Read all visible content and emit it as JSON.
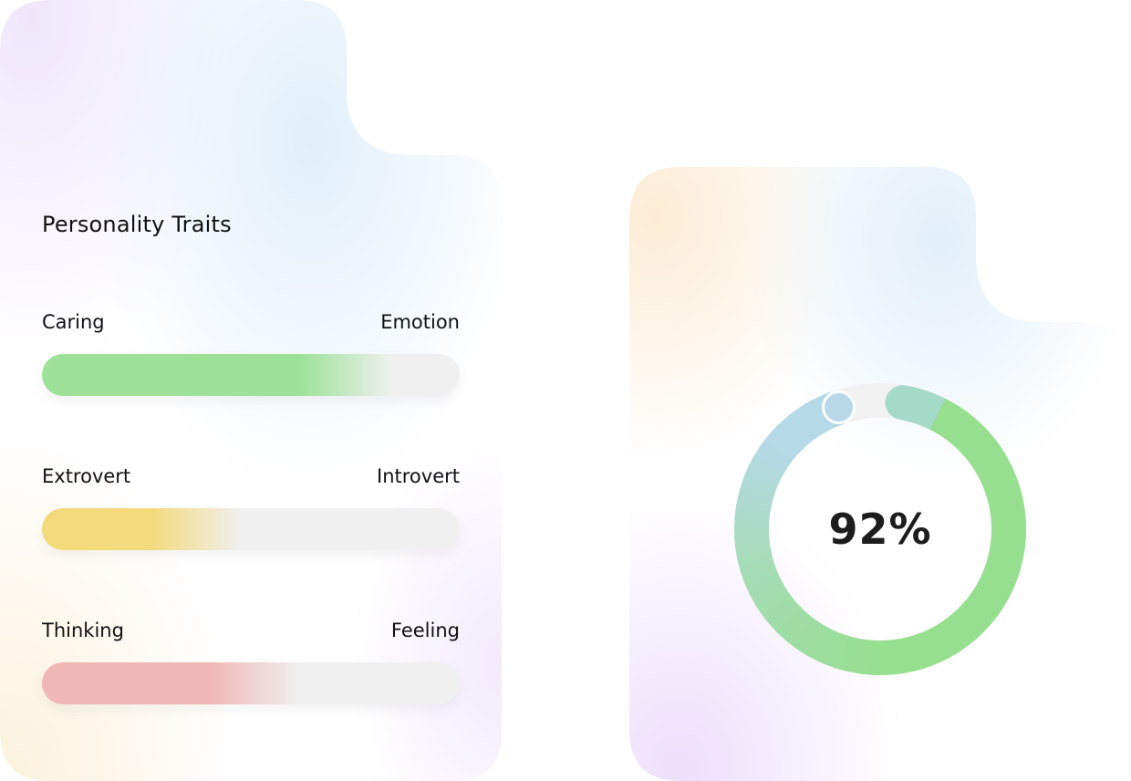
{
  "traits_card": {
    "title": "Personality Traits",
    "traits": [
      {
        "left_label": "Caring",
        "right_label": "Emotion",
        "level": 0.62,
        "color": "#9ee29a"
      },
      {
        "left_label": "Extrovert",
        "right_label": "Introvert",
        "level": 0.26,
        "color": "#f3da7c"
      },
      {
        "left_label": "Thinking",
        "right_label": "Feeling",
        "level": 0.4,
        "color": "#f1b6b6"
      }
    ]
  },
  "score_card": {
    "value_text": "92%",
    "fraction": 0.92,
    "ring_colors": [
      "#b6d9e8",
      "#a5dcb4",
      "#96df8e"
    ]
  }
}
